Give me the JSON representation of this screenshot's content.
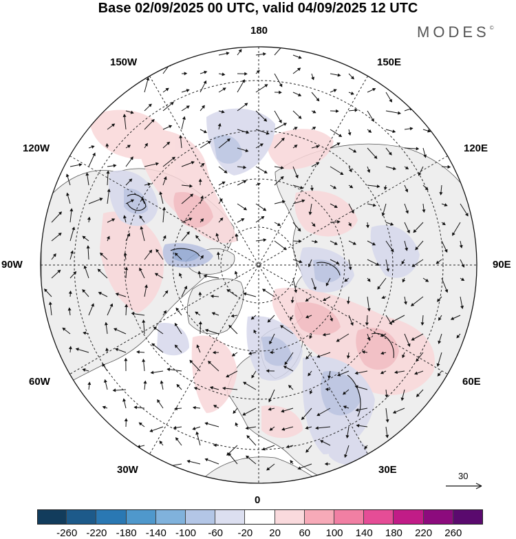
{
  "header": {
    "title": "Base 02/09/2025 00 UTC, valid 04/09/2025 12 UTC",
    "brand": "MODES",
    "brand_mark": "©"
  },
  "map": {
    "projection": "north polar stereographic",
    "longitude_labels": {
      "top": "180",
      "bottom": "0",
      "left": "90W",
      "right": "90E",
      "upper_left_1": "150W",
      "upper_left_2": "120W",
      "upper_right_1": "150E",
      "upper_right_2": "120E",
      "lower_left_1": "60W",
      "lower_left_2": "30W",
      "lower_right_1": "60E",
      "lower_right_2": "30E"
    },
    "land_color": "#eeeeee",
    "ocean_color": "#ffffff",
    "anomaly_regions": [
      {
        "sign": "positive",
        "level": 60,
        "color": "#f9d7d9"
      },
      {
        "sign": "positive",
        "level": 100,
        "color": "#f3b9bf"
      },
      {
        "sign": "negative",
        "level": -60,
        "color": "#d6d8ec"
      },
      {
        "sign": "negative",
        "level": -100,
        "color": "#b7c1e0"
      },
      {
        "sign": "negative",
        "level": -140,
        "color": "#8fa6d2"
      }
    ]
  },
  "colorbar": {
    "colors": [
      "#123c5c",
      "#1d5a8a",
      "#2a78b3",
      "#4f98cc",
      "#80b2dc",
      "#b3c6e6",
      "#dcdff0",
      "#ffffff",
      "#fadadd",
      "#f7aab8",
      "#f17fa3",
      "#e54d96",
      "#c11c87",
      "#8c0b7d",
      "#5a0a6e"
    ],
    "tick_labels": [
      "-260",
      "-220",
      "-180",
      "-140",
      "-100",
      "-60",
      "-20",
      "20",
      "60",
      "100",
      "140",
      "180",
      "220",
      "260"
    ]
  },
  "vector_legend": {
    "value": "30"
  }
}
